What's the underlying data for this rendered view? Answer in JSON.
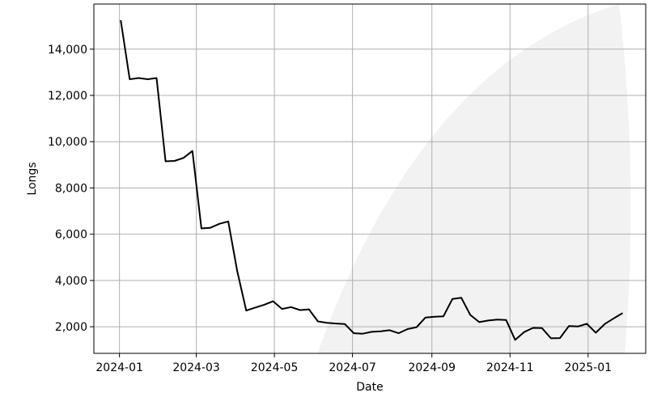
{
  "chart_data": {
    "type": "line",
    "title": "",
    "xlabel": "Date",
    "ylabel": "Longs",
    "grid": true,
    "x_tick_labels": [
      "2024-01",
      "2024-03",
      "2024-05",
      "2024-07",
      "2024-09",
      "2024-11",
      "2025-01"
    ],
    "y_tick_labels": [
      "2,000",
      "4,000",
      "6,000",
      "8,000",
      "10,000",
      "12,000",
      "14,000"
    ],
    "y_ticks": [
      2000,
      4000,
      6000,
      8000,
      10000,
      12000,
      14000
    ],
    "xlim": [
      "2023-12-12",
      "2025-02-15"
    ],
    "ylim": [
      850,
      15950
    ],
    "colors": {
      "line": "#000000",
      "grid": "#b0b0b0",
      "watermark": "#f2f2f2"
    },
    "series": [
      {
        "x": [
          "2024-01-02",
          "2024-01-09",
          "2024-01-16",
          "2024-01-23",
          "2024-01-30",
          "2024-02-06",
          "2024-02-13",
          "2024-02-20",
          "2024-02-27",
          "2024-03-05",
          "2024-03-12",
          "2024-03-19",
          "2024-03-26",
          "2024-04-02",
          "2024-04-09",
          "2024-04-16",
          "2024-04-23",
          "2024-04-30",
          "2024-05-07",
          "2024-05-14",
          "2024-05-21",
          "2024-05-28",
          "2024-06-04",
          "2024-06-11",
          "2024-06-18",
          "2024-06-25",
          "2024-07-02",
          "2024-07-09",
          "2024-07-16",
          "2024-07-23",
          "2024-07-30",
          "2024-08-06",
          "2024-08-13",
          "2024-08-20",
          "2024-08-27",
          "2024-09-03",
          "2024-09-10",
          "2024-09-17",
          "2024-09-24",
          "2024-10-01",
          "2024-10-08",
          "2024-10-15",
          "2024-10-22",
          "2024-10-29",
          "2024-11-05",
          "2024-11-12",
          "2024-11-19",
          "2024-11-26",
          "2024-12-03",
          "2024-12-10",
          "2024-12-17",
          "2024-12-24",
          "2024-12-31",
          "2025-01-07",
          "2025-01-14",
          "2025-01-21",
          "2025-01-28"
        ],
        "values": [
          15250,
          12700,
          12750,
          12700,
          12750,
          9150,
          9170,
          9300,
          9600,
          6250,
          6280,
          6450,
          6550,
          4400,
          2700,
          2830,
          2950,
          3100,
          2770,
          2850,
          2720,
          2750,
          2230,
          2170,
          2140,
          2120,
          1720,
          1700,
          1780,
          1800,
          1850,
          1720,
          1900,
          1980,
          2400,
          2430,
          2450,
          3200,
          3250,
          2510,
          2200,
          2270,
          2310,
          2290,
          1430,
          1770,
          1950,
          1940,
          1500,
          1510,
          2030,
          2010,
          2130,
          1740,
          2120,
          2360,
          2590
        ]
      }
    ]
  }
}
